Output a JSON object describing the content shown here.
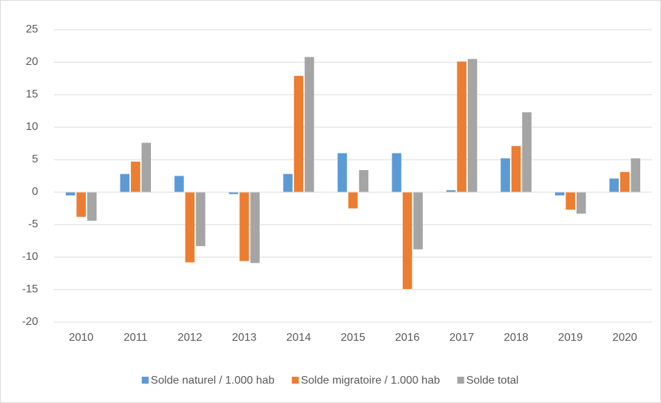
{
  "chart_data": {
    "type": "bar",
    "categories": [
      "2010",
      "2011",
      "2012",
      "2013",
      "2014",
      "2015",
      "2016",
      "2017",
      "2018",
      "2019",
      "2020"
    ],
    "series": [
      {
        "name": "Solde naturel / 1.000 hab",
        "color": "#5b9bd5",
        "values": [
          -0.5,
          2.8,
          2.5,
          -0.3,
          2.8,
          6.0,
          6.0,
          0.3,
          5.2,
          -0.5,
          2.1
        ]
      },
      {
        "name": "Solde migratoire / 1.000 hab",
        "color": "#ed7d31",
        "values": [
          -3.8,
          4.7,
          -10.8,
          -10.6,
          17.9,
          -2.5,
          -14.9,
          20.1,
          7.1,
          -2.7,
          3.1
        ]
      },
      {
        "name": "Solde total",
        "color": "#a5a5a5",
        "values": [
          -4.4,
          7.6,
          -8.3,
          -10.9,
          20.8,
          3.4,
          -8.8,
          20.5,
          12.3,
          -3.3,
          5.2
        ]
      }
    ],
    "ylim": [
      -20,
      25
    ],
    "yticks": [
      -20,
      -15,
      -10,
      -5,
      0,
      5,
      10,
      15,
      20,
      25
    ],
    "grid": true,
    "legend": "bottom"
  }
}
